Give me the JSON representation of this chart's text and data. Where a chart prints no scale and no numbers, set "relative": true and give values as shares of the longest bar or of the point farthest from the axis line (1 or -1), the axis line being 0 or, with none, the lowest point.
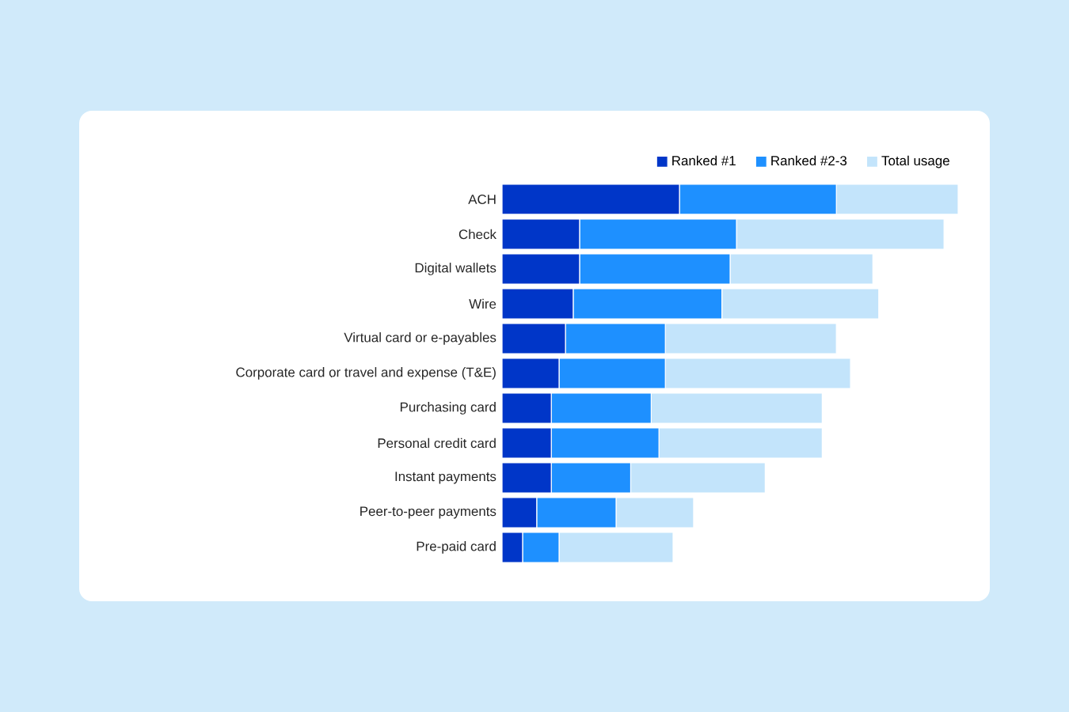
{
  "chart_data": {
    "type": "bar",
    "orientation": "horizontal",
    "stacked": true,
    "relative": true,
    "legend": "top right",
    "categories": [
      "ACH",
      "Check",
      "Digital wallets",
      "Wire",
      "Virtual card or e-payables",
      "Corporate card or travel and expense (T&E)",
      "Purchasing card",
      "Personal credit card",
      "Instant payments",
      "Peer-to-peer payments",
      "Pre-paid card"
    ],
    "series": [
      {
        "name": "Ranked #1",
        "color": "#0036c8",
        "values": [
          0.389,
          0.17,
          0.17,
          0.156,
          0.139,
          0.125,
          0.108,
          0.108,
          0.108,
          0.076,
          0.045
        ]
      },
      {
        "name": "Ranked #2-3",
        "color": "#1e90ff",
        "values": [
          0.344,
          0.344,
          0.33,
          0.326,
          0.219,
          0.233,
          0.219,
          0.236,
          0.174,
          0.174,
          0.08
        ]
      },
      {
        "name": "Total usage",
        "color": "#c3e4fb",
        "values": [
          0.267,
          0.455,
          0.313,
          0.344,
          0.375,
          0.406,
          0.375,
          0.358,
          0.295,
          0.17,
          0.25
        ]
      }
    ]
  }
}
